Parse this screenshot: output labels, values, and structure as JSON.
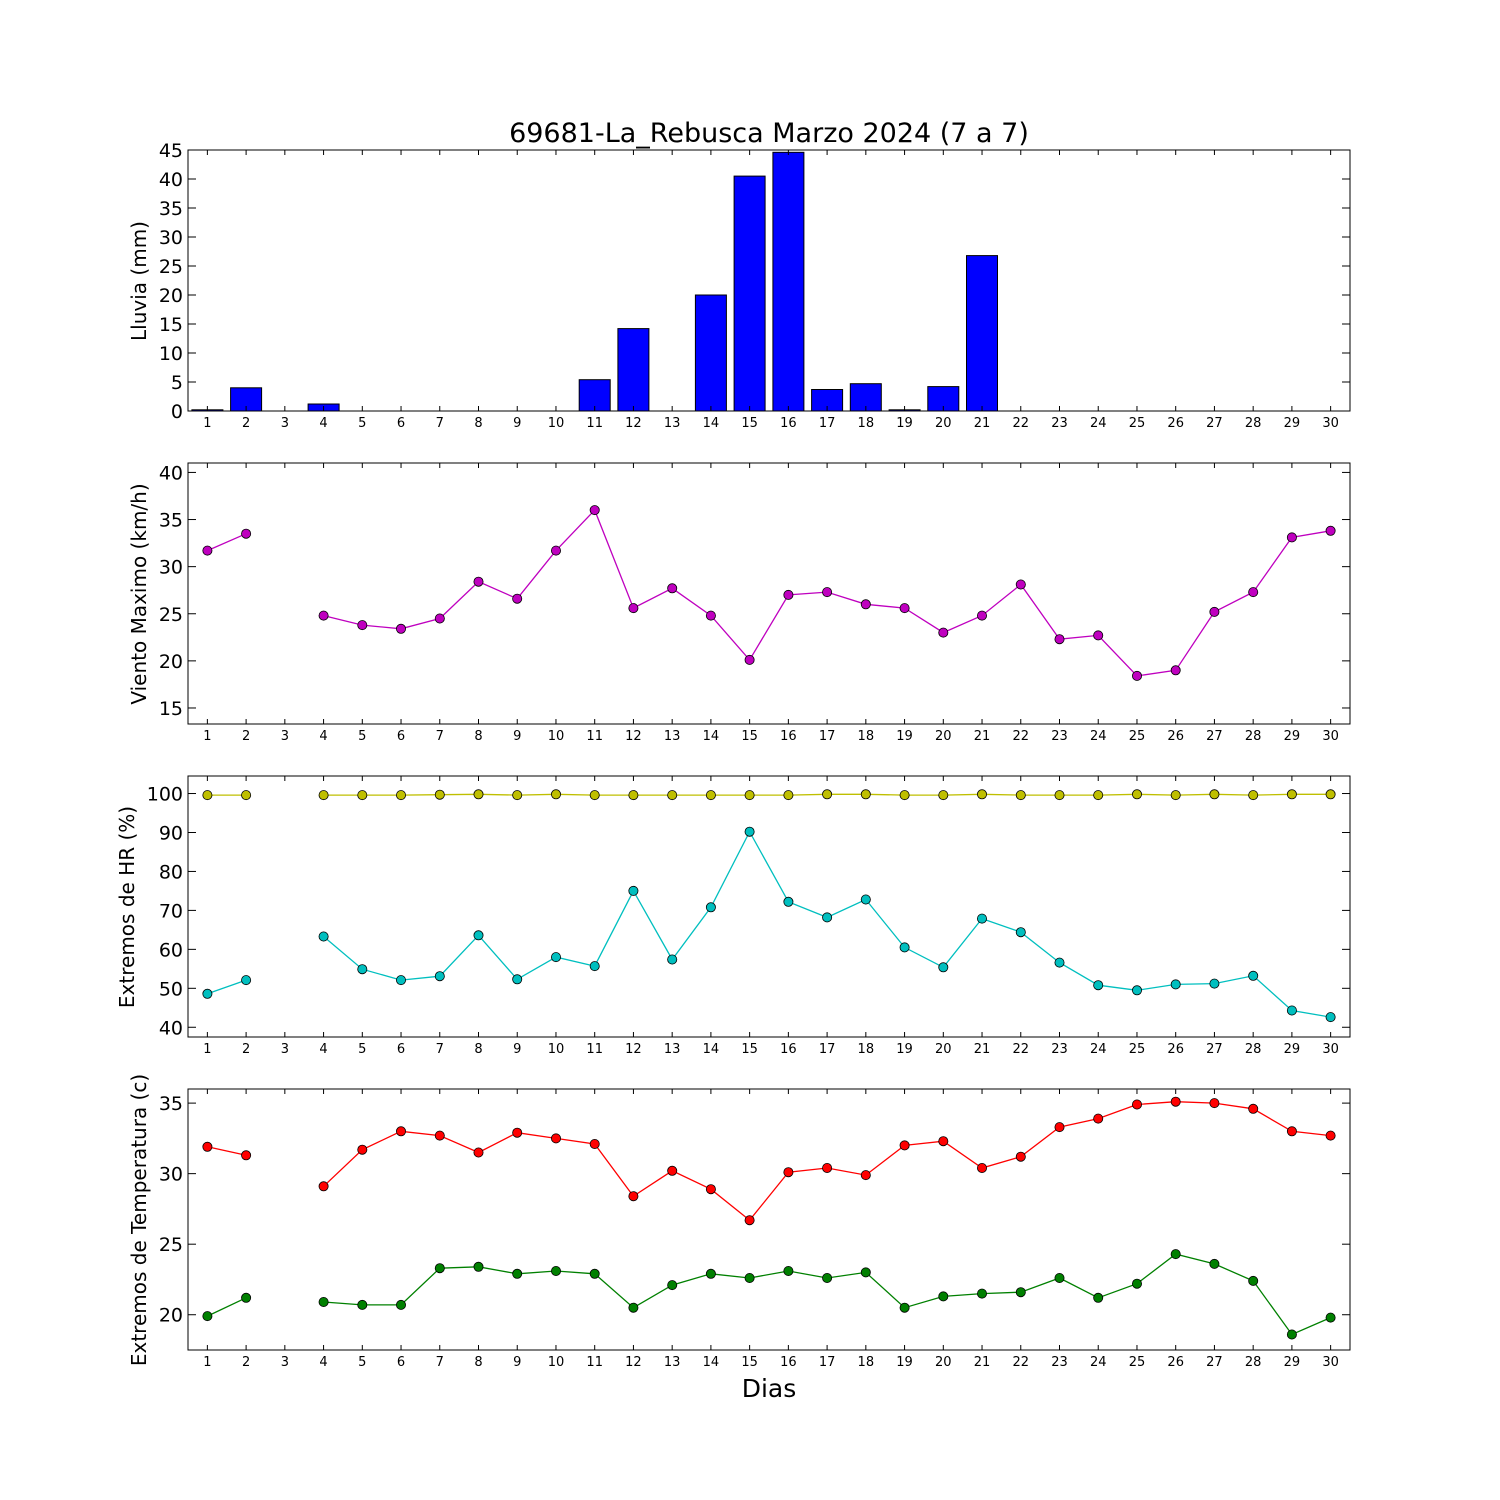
{
  "chart_data": [
    {
      "type": "bar",
      "title": "69681-La_Rebusca Marzo 2024  (7 a 7)",
      "ylabel": "Lluvia (mm)",
      "categories": [
        "1",
        "2",
        "3",
        "4",
        "5",
        "6",
        "7",
        "8",
        "9",
        "10",
        "11",
        "12",
        "13",
        "14",
        "15",
        "16",
        "17",
        "18",
        "19",
        "20",
        "21",
        "22",
        "23",
        "24",
        "25",
        "26",
        "27",
        "28",
        "29",
        "30"
      ],
      "values": [
        0.2,
        4.0,
        null,
        1.2,
        0,
        0,
        0,
        0,
        0,
        0,
        5.4,
        14.2,
        null,
        20.0,
        40.5,
        44.6,
        3.7,
        4.7,
        0.2,
        4.2,
        26.8,
        0,
        0,
        0,
        0,
        0,
        0,
        0,
        0,
        0
      ],
      "ylim": [
        0,
        45
      ],
      "yticks": [
        0,
        5,
        10,
        15,
        20,
        25,
        30,
        35,
        40,
        45
      ],
      "color": "#0000ff"
    },
    {
      "type": "line",
      "ylabel": "Viento Maximo (km/h)",
      "x": [
        1,
        2,
        3,
        4,
        5,
        6,
        7,
        8,
        9,
        10,
        11,
        12,
        13,
        14,
        15,
        16,
        17,
        18,
        19,
        20,
        21,
        22,
        23,
        24,
        25,
        26,
        27,
        28,
        29,
        30
      ],
      "series": [
        {
          "values": [
            31.7,
            33.5,
            null,
            24.8,
            23.8,
            23.4,
            24.5,
            28.4,
            26.6,
            31.7,
            36.0,
            25.6,
            27.7,
            24.8,
            20.1,
            27.0,
            27.3,
            26.0,
            25.6,
            23.0,
            24.8,
            28.1,
            22.3,
            22.7,
            18.4,
            19.0,
            25.2,
            27.3,
            33.1,
            33.8
          ],
          "color": "#bf00bf"
        }
      ],
      "ylim": [
        13.3,
        41
      ],
      "yticks": [
        15,
        20,
        25,
        30,
        35,
        40
      ]
    },
    {
      "type": "line",
      "ylabel": "Extremos de HR (%)",
      "x": [
        1,
        2,
        3,
        4,
        5,
        6,
        7,
        8,
        9,
        10,
        11,
        12,
        13,
        14,
        15,
        16,
        17,
        18,
        19,
        20,
        21,
        22,
        23,
        24,
        25,
        26,
        27,
        28,
        29,
        30
      ],
      "series": [
        {
          "values": [
            99.6,
            99.6,
            null,
            99.6,
            99.6,
            99.6,
            99.7,
            99.8,
            99.6,
            99.8,
            99.6,
            99.6,
            99.6,
            99.6,
            99.6,
            99.6,
            99.8,
            99.8,
            99.6,
            99.6,
            99.8,
            99.6,
            99.6,
            99.6,
            99.8,
            99.6,
            99.8,
            99.6,
            99.8,
            99.8
          ],
          "color": "#bfbf00"
        },
        {
          "values": [
            48.6,
            52.1,
            null,
            63.3,
            54.9,
            52.1,
            53.1,
            63.6,
            52.3,
            58.0,
            55.7,
            75.0,
            57.4,
            70.8,
            90.2,
            72.2,
            68.2,
            72.8,
            60.5,
            55.4,
            67.9,
            64.4,
            56.6,
            50.8,
            49.5,
            51.0,
            51.2,
            53.2,
            44.3,
            42.6
          ],
          "color": "#00bfbf"
        }
      ],
      "ylim": [
        37.5,
        104.5
      ],
      "yticks": [
        40,
        50,
        60,
        70,
        80,
        90,
        100
      ]
    },
    {
      "type": "line",
      "ylabel": "Extremos de Temperatura (c)",
      "xlabel": "Dias",
      "x": [
        1,
        2,
        3,
        4,
        5,
        6,
        7,
        8,
        9,
        10,
        11,
        12,
        13,
        14,
        15,
        16,
        17,
        18,
        19,
        20,
        21,
        22,
        23,
        24,
        25,
        26,
        27,
        28,
        29,
        30
      ],
      "series": [
        {
          "values": [
            31.9,
            31.3,
            null,
            29.1,
            31.7,
            33.0,
            32.7,
            31.5,
            32.9,
            32.5,
            32.1,
            28.4,
            30.2,
            28.9,
            26.7,
            30.1,
            30.4,
            29.9,
            32.0,
            32.3,
            30.4,
            31.2,
            33.3,
            33.9,
            34.9,
            35.1,
            35.0,
            34.6,
            33.0,
            32.7
          ],
          "color": "#ff0000"
        },
        {
          "values": [
            19.9,
            21.2,
            null,
            20.9,
            20.7,
            20.7,
            23.3,
            23.4,
            22.9,
            23.1,
            22.9,
            20.5,
            22.1,
            22.9,
            22.6,
            23.1,
            22.6,
            23.0,
            20.5,
            21.3,
            21.5,
            21.6,
            22.6,
            21.2,
            22.2,
            24.3,
            23.6,
            22.4,
            18.6,
            19.8
          ],
          "color": "#008000"
        }
      ],
      "ylim": [
        17.5,
        36
      ],
      "yticks": [
        20,
        25,
        30,
        35
      ]
    }
  ]
}
